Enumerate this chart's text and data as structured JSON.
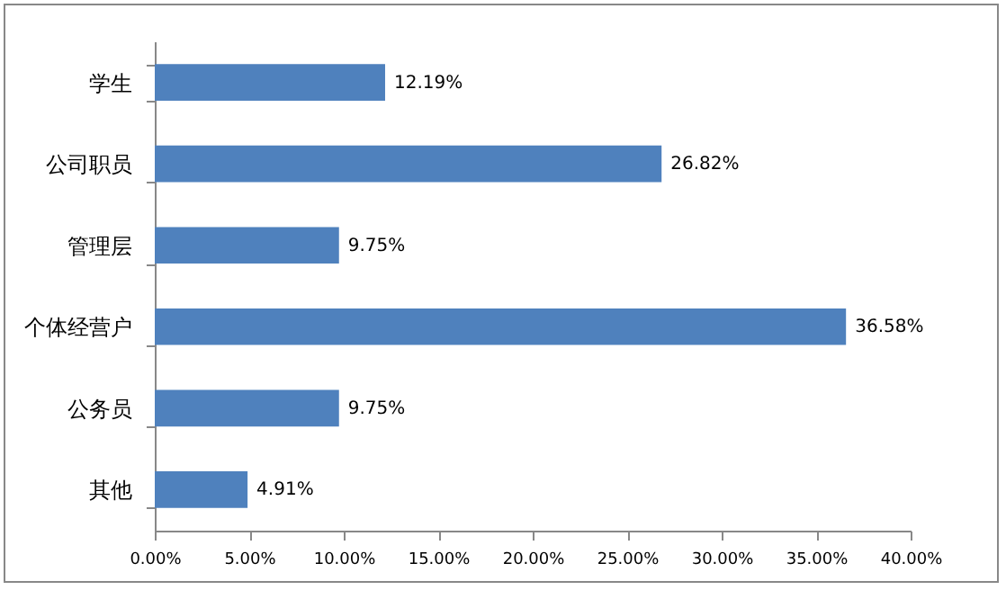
{
  "chart_data": {
    "type": "bar",
    "orientation": "horizontal",
    "categories": [
      "学生",
      "公司职员",
      "管理层",
      "个体经营户",
      "公务员",
      "其他"
    ],
    "values": [
      12.19,
      26.82,
      9.75,
      36.58,
      9.75,
      4.91
    ],
    "value_labels": [
      "12.19%",
      "26.82%",
      "9.75%",
      "36.58%",
      "9.75%",
      "4.91%"
    ],
    "color": "#4f81bd",
    "xlim": [
      0,
      40
    ],
    "xticks": [
      {
        "value": 0,
        "label": "0.00%"
      },
      {
        "value": 5,
        "label": "5.00%"
      },
      {
        "value": 10,
        "label": "10.00%"
      },
      {
        "value": 15,
        "label": "15.00%"
      },
      {
        "value": 20,
        "label": "20.00%"
      },
      {
        "value": 25,
        "label": "25.00%"
      },
      {
        "value": 30,
        "label": "30.00%"
      },
      {
        "value": 35,
        "label": "35.00%"
      },
      {
        "value": 40,
        "label": "40.00%"
      }
    ],
    "grid": false
  }
}
